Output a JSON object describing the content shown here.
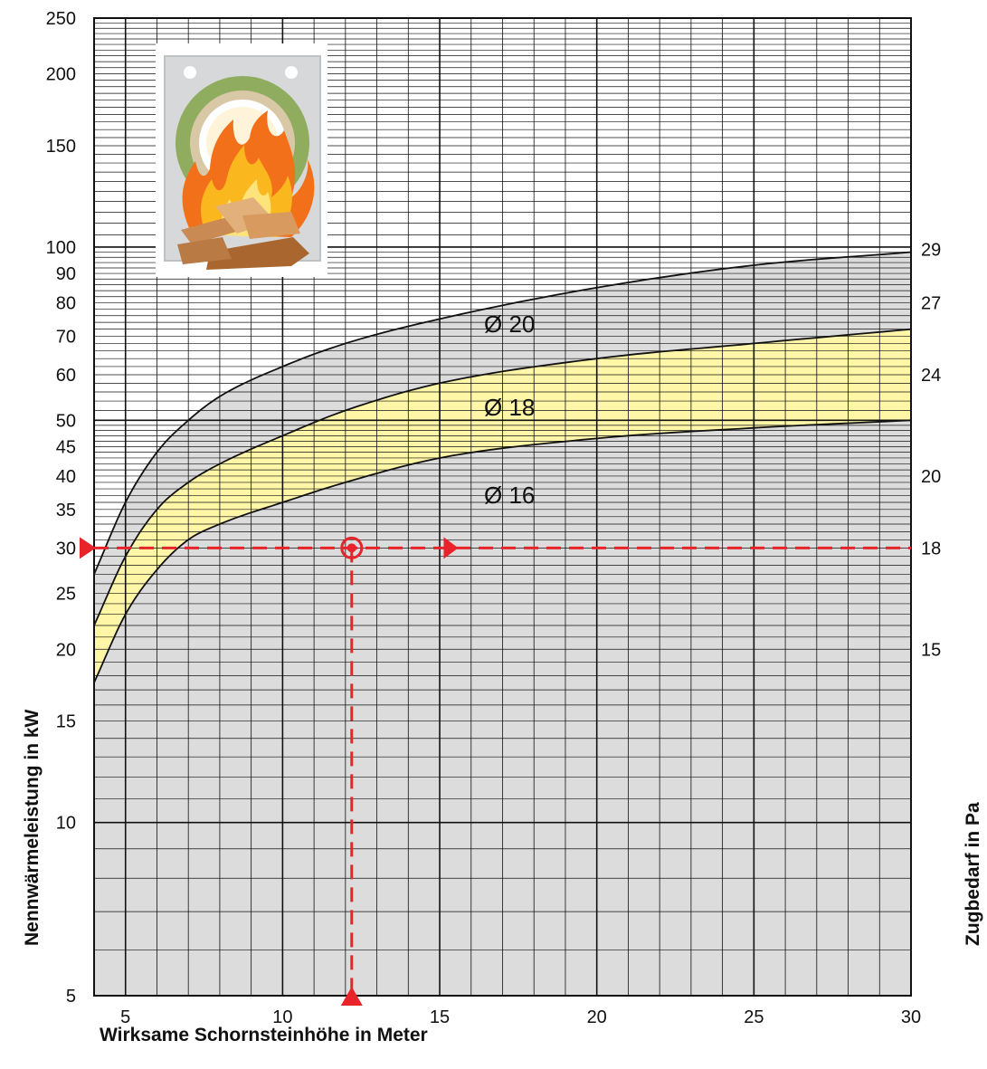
{
  "chart_data": {
    "type": "area",
    "xlabel": "Wirksame Schornsteinhöhe in Meter",
    "ylabel": "Nennwärmeleistung in kW",
    "y2label": "Zugbedarf in Pa",
    "xlim": [
      4,
      30
    ],
    "ylim": [
      5,
      250
    ],
    "yscale": "log",
    "grid": true,
    "x_ticks": [
      5,
      10,
      15,
      20,
      25,
      30
    ],
    "y_ticks": [
      5,
      10,
      15,
      20,
      25,
      30,
      35,
      40,
      45,
      50,
      60,
      70,
      80,
      90,
      100,
      150,
      200,
      250
    ],
    "y2_ticks": [
      {
        "at_kw": 99,
        "label": "29"
      },
      {
        "at_kw": 80,
        "label": "27"
      },
      {
        "at_kw": 60,
        "label": "24"
      },
      {
        "at_kw": 40,
        "label": "20"
      },
      {
        "at_kw": 30,
        "label": "18"
      },
      {
        "at_kw": 20,
        "label": "15"
      }
    ],
    "x": [
      4,
      5,
      6,
      7,
      8,
      10,
      12,
      15,
      20,
      25,
      30
    ],
    "series": [
      {
        "name": "Ø 20",
        "values": [
          27,
          36,
          44,
          50,
          55,
          62,
          68,
          75,
          85,
          93,
          98
        ],
        "fill": "#dcdcdc"
      },
      {
        "name": "Ø 18",
        "values": [
          22,
          29,
          35,
          39,
          42,
          47,
          52,
          58,
          64,
          68,
          72
        ],
        "fill": "#fff6a8"
      },
      {
        "name": "Ø 16",
        "values": [
          17.5,
          23,
          27.5,
          31,
          33,
          36,
          39,
          43,
          46.5,
          48.5,
          50
        ],
        "fill": "#dcdcdc"
      }
    ],
    "annotation": {
      "height_m": 12.2,
      "power_kw": 30,
      "draft_pa": "18",
      "color": "#e8232a"
    },
    "colors": {
      "grey_region": "#dcdcdc",
      "yellow_band": "#fff6a8",
      "grid": "#111111",
      "curve": "#111111",
      "marker": "#e8232a"
    }
  },
  "illustration": {
    "icon": "fireplace-flame-icon"
  }
}
